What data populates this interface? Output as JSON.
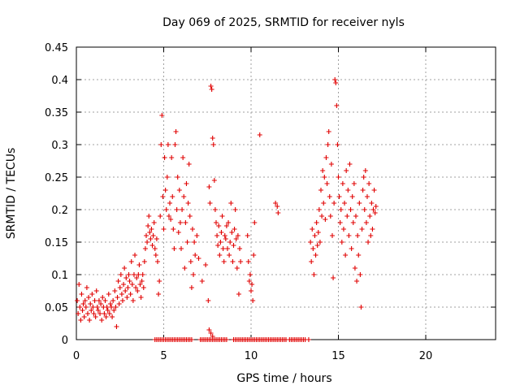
{
  "chart_data": {
    "type": "scatter",
    "title": "Day 069 of 2025, SRMTID for receiver nyls",
    "xlabel": "GPS time / hours",
    "ylabel": "SRMTID / TECUs",
    "xlim": [
      0,
      24
    ],
    "ylim": [
      0,
      0.45
    ],
    "x_ticks": [
      0,
      5,
      10,
      15,
      20
    ],
    "y_ticks": [
      0,
      0.05,
      0.1,
      0.15,
      0.2,
      0.25,
      0.3,
      0.35,
      0.4,
      0.45
    ],
    "x_tick_labels": [
      "0",
      "5",
      "10",
      "15",
      "20"
    ],
    "y_tick_labels": [
      "0",
      "0.05",
      "0.1",
      "0.15",
      "0.2",
      "0.25",
      "0.3",
      "0.35",
      "0.4",
      "0.45"
    ],
    "grid": true,
    "marker": "plus",
    "color": "#e00000",
    "series": [
      {
        "points": [
          [
            0.05,
            0.06
          ],
          [
            0.1,
            0.04
          ],
          [
            0.15,
            0.085
          ],
          [
            0.2,
            0.05
          ],
          [
            0.25,
            0.03
          ],
          [
            0.3,
            0.07
          ],
          [
            0.35,
            0.045
          ],
          [
            0.4,
            0.055
          ],
          [
            0.45,
            0.035
          ],
          [
            0.5,
            0.06
          ],
          [
            0.55,
            0.05
          ],
          [
            0.6,
            0.08
          ],
          [
            0.65,
            0.04
          ],
          [
            0.7,
            0.065
          ],
          [
            0.75,
            0.03
          ],
          [
            0.8,
            0.055
          ],
          [
            0.85,
            0.045
          ],
          [
            0.9,
            0.07
          ],
          [
            0.95,
            0.05
          ],
          [
            1.0,
            0.04
          ],
          [
            1.05,
            0.06
          ],
          [
            1.1,
            0.035
          ],
          [
            1.15,
            0.075
          ],
          [
            1.2,
            0.05
          ],
          [
            1.25,
            0.045
          ],
          [
            1.3,
            0.06
          ],
          [
            1.35,
            0.04
          ],
          [
            1.4,
            0.055
          ],
          [
            1.45,
            0.03
          ],
          [
            1.5,
            0.065
          ],
          [
            1.55,
            0.05
          ],
          [
            1.6,
            0.04
          ],
          [
            1.65,
            0.06
          ],
          [
            1.7,
            0.035
          ],
          [
            1.75,
            0.05
          ],
          [
            1.8,
            0.045
          ],
          [
            1.85,
            0.07
          ],
          [
            1.9,
            0.04
          ],
          [
            1.95,
            0.055
          ],
          [
            2.0,
            0.05
          ],
          [
            2.05,
            0.035
          ],
          [
            2.1,
            0.06
          ],
          [
            2.15,
            0.045
          ],
          [
            2.2,
            0.075
          ],
          [
            2.25,
            0.05
          ],
          [
            2.3,
            0.02
          ],
          [
            2.35,
            0.065
          ],
          [
            2.4,
            0.09
          ],
          [
            2.45,
            0.055
          ],
          [
            2.5,
            0.08
          ],
          [
            2.55,
            0.1
          ],
          [
            2.6,
            0.07
          ],
          [
            2.65,
            0.06
          ],
          [
            2.7,
            0.085
          ],
          [
            2.75,
            0.11
          ],
          [
            2.8,
            0.075
          ],
          [
            2.85,
            0.095
          ],
          [
            2.9,
            0.065
          ],
          [
            2.95,
            0.08
          ],
          [
            3.0,
            0.1
          ],
          [
            3.05,
            0.09
          ],
          [
            3.1,
            0.07
          ],
          [
            3.15,
            0.12
          ],
          [
            3.2,
            0.085
          ],
          [
            3.25,
            0.06
          ],
          [
            3.3,
            0.1
          ],
          [
            3.35,
            0.13
          ],
          [
            3.4,
            0.08
          ],
          [
            3.45,
            0.095
          ],
          [
            3.5,
            0.075
          ],
          [
            3.55,
            0.1
          ],
          [
            3.6,
            0.115
          ],
          [
            3.65,
            0.085
          ],
          [
            3.7,
            0.065
          ],
          [
            3.75,
            0.09
          ],
          [
            3.8,
            0.1
          ],
          [
            3.85,
            0.08
          ],
          [
            3.9,
            0.12
          ],
          [
            3.95,
            0.14
          ],
          [
            4.0,
            0.16
          ],
          [
            4.05,
            0.15
          ],
          [
            4.1,
            0.175
          ],
          [
            4.15,
            0.19
          ],
          [
            4.2,
            0.165
          ],
          [
            4.25,
            0.155
          ],
          [
            4.3,
            0.17
          ],
          [
            4.35,
            0.145
          ],
          [
            4.4,
            0.16
          ],
          [
            4.45,
            0.18
          ],
          [
            4.5,
            0.14
          ],
          [
            4.55,
            0.13
          ],
          [
            4.6,
            0.155
          ],
          [
            4.65,
            0.12
          ],
          [
            4.7,
            0.07
          ],
          [
            4.75,
            0.09
          ],
          [
            4.8,
            0.19
          ],
          [
            4.85,
            0.3
          ],
          [
            4.9,
            0.345
          ],
          [
            4.95,
            0.22
          ],
          [
            5.0,
            0.17
          ],
          [
            5.05,
            0.28
          ],
          [
            5.1,
            0.23
          ],
          [
            5.15,
            0.2
          ],
          [
            5.2,
            0.25
          ],
          [
            5.25,
            0.3
          ],
          [
            5.3,
            0.19
          ],
          [
            5.35,
            0.21
          ],
          [
            5.4,
            0.185
          ],
          [
            5.45,
            0.28
          ],
          [
            5.5,
            0.22
          ],
          [
            5.55,
            0.17
          ],
          [
            5.6,
            0.14
          ],
          [
            5.65,
            0.3
          ],
          [
            5.7,
            0.32
          ],
          [
            5.75,
            0.2
          ],
          [
            5.8,
            0.25
          ],
          [
            5.85,
            0.165
          ],
          [
            5.9,
            0.23
          ],
          [
            5.95,
            0.18
          ],
          [
            6.0,
            0.14
          ],
          [
            6.05,
            0.2
          ],
          [
            6.1,
            0.28
          ],
          [
            6.15,
            0.22
          ],
          [
            6.2,
            0.11
          ],
          [
            6.25,
            0.18
          ],
          [
            6.3,
            0.24
          ],
          [
            6.35,
            0.15
          ],
          [
            6.4,
            0.21
          ],
          [
            6.45,
            0.27
          ],
          [
            6.5,
            0.19
          ],
          [
            6.55,
            0.12
          ],
          [
            6.6,
            0.08
          ],
          [
            6.65,
            0.17
          ],
          [
            6.7,
            0.1
          ],
          [
            6.75,
            0.15
          ],
          [
            6.8,
            0.13
          ],
          [
            6.9,
            0.16
          ],
          [
            7.0,
            0.125
          ],
          [
            7.2,
            0.09
          ],
          [
            7.4,
            0.115
          ],
          [
            7.6,
            0.235
          ],
          [
            7.65,
            0.21
          ],
          [
            7.7,
            0.39
          ],
          [
            7.75,
            0.385
          ],
          [
            7.8,
            0.31
          ],
          [
            7.85,
            0.3
          ],
          [
            7.9,
            0.245
          ],
          [
            7.95,
            0.2
          ],
          [
            8.0,
            0.18
          ],
          [
            8.05,
            0.16
          ],
          [
            8.1,
            0.145
          ],
          [
            8.15,
            0.175
          ],
          [
            8.2,
            0.13
          ],
          [
            8.25,
            0.15
          ],
          [
            8.3,
            0.165
          ],
          [
            8.35,
            0.19
          ],
          [
            8.4,
            0.14
          ],
          [
            8.45,
            0.12
          ],
          [
            8.5,
            0.16
          ],
          [
            8.55,
            0.155
          ],
          [
            8.6,
            0.175
          ],
          [
            8.65,
            0.14
          ],
          [
            8.7,
            0.18
          ],
          [
            8.75,
            0.13
          ],
          [
            8.8,
            0.15
          ],
          [
            8.85,
            0.21
          ],
          [
            8.9,
            0.165
          ],
          [
            8.95,
            0.12
          ],
          [
            9.0,
            0.145
          ],
          [
            9.05,
            0.17
          ],
          [
            9.1,
            0.2
          ],
          [
            9.15,
            0.155
          ],
          [
            9.2,
            0.11
          ],
          [
            9.25,
            0.16
          ],
          [
            9.3,
            0.07
          ],
          [
            9.35,
            0.14
          ],
          [
            9.4,
            0.12
          ],
          [
            9.8,
            0.16
          ],
          [
            9.85,
            0.12
          ],
          [
            9.9,
            0.09
          ],
          [
            9.95,
            0.1
          ],
          [
            10.0,
            0.075
          ],
          [
            10.05,
            0.085
          ],
          [
            10.1,
            0.06
          ],
          [
            10.15,
            0.13
          ],
          [
            10.2,
            0.18
          ],
          [
            7.55,
            0.06
          ],
          [
            7.6,
            0.015
          ],
          [
            7.7,
            0.01
          ],
          [
            7.8,
            0.005
          ],
          [
            10.5,
            0.315
          ],
          [
            11.4,
            0.21
          ],
          [
            11.5,
            0.205
          ],
          [
            11.55,
            0.195
          ],
          [
            13.4,
            0.15
          ],
          [
            13.45,
            0.12
          ],
          [
            13.5,
            0.17
          ],
          [
            13.55,
            0.14
          ],
          [
            13.6,
            0.1
          ],
          [
            13.65,
            0.16
          ],
          [
            13.7,
            0.13
          ],
          [
            13.75,
            0.18
          ],
          [
            13.8,
            0.145
          ],
          [
            13.85,
            0.165
          ],
          [
            13.9,
            0.2
          ],
          [
            13.95,
            0.15
          ],
          [
            14.0,
            0.23
          ],
          [
            14.05,
            0.19
          ],
          [
            14.1,
            0.26
          ],
          [
            14.15,
            0.21
          ],
          [
            14.2,
            0.25
          ],
          [
            14.25,
            0.185
          ],
          [
            14.3,
            0.28
          ],
          [
            14.35,
            0.24
          ],
          [
            14.4,
            0.3
          ],
          [
            14.45,
            0.32
          ],
          [
            14.5,
            0.22
          ],
          [
            14.55,
            0.19
          ],
          [
            14.6,
            0.27
          ],
          [
            14.65,
            0.16
          ],
          [
            14.7,
            0.095
          ],
          [
            14.75,
            0.21
          ],
          [
            14.8,
            0.4
          ],
          [
            14.85,
            0.395
          ],
          [
            14.9,
            0.36
          ],
          [
            14.95,
            0.3
          ],
          [
            15.0,
            0.25
          ],
          [
            15.05,
            0.22
          ],
          [
            15.1,
            0.18
          ],
          [
            15.15,
            0.2
          ],
          [
            15.2,
            0.15
          ],
          [
            15.25,
            0.24
          ],
          [
            15.3,
            0.17
          ],
          [
            15.35,
            0.21
          ],
          [
            15.4,
            0.13
          ],
          [
            15.45,
            0.26
          ],
          [
            15.5,
            0.19
          ],
          [
            15.55,
            0.23
          ],
          [
            15.6,
            0.16
          ],
          [
            15.65,
            0.27
          ],
          [
            15.7,
            0.2
          ],
          [
            15.75,
            0.14
          ],
          [
            15.8,
            0.22
          ],
          [
            15.85,
            0.18
          ],
          [
            15.9,
            0.24
          ],
          [
            15.95,
            0.11
          ],
          [
            16.0,
            0.19
          ],
          [
            16.05,
            0.09
          ],
          [
            16.1,
            0.16
          ],
          [
            16.15,
            0.13
          ],
          [
            16.2,
            0.21
          ],
          [
            16.25,
            0.1
          ],
          [
            16.3,
            0.05
          ],
          [
            16.35,
            0.17
          ],
          [
            16.4,
            0.23
          ],
          [
            16.45,
            0.25
          ],
          [
            16.5,
            0.2
          ],
          [
            16.55,
            0.26
          ],
          [
            16.6,
            0.18
          ],
          [
            16.65,
            0.22
          ],
          [
            16.7,
            0.15
          ],
          [
            16.75,
            0.24
          ],
          [
            16.8,
            0.19
          ],
          [
            16.85,
            0.16
          ],
          [
            16.9,
            0.21
          ],
          [
            16.95,
            0.17
          ],
          [
            17.0,
            0.2
          ],
          [
            17.05,
            0.23
          ],
          [
            17.1,
            0.195
          ],
          [
            17.15,
            0.205
          ]
        ],
        "zero_points_x": [
          4.5,
          4.6,
          4.7,
          4.8,
          4.9,
          5.0,
          5.1,
          5.2,
          5.3,
          5.4,
          5.5,
          5.6,
          5.7,
          5.8,
          5.9,
          6.0,
          6.1,
          6.2,
          6.3,
          6.4,
          6.5,
          6.6,
          7.1,
          7.2,
          7.3,
          7.4,
          7.5,
          7.6,
          7.7,
          7.8,
          7.9,
          8.0,
          8.1,
          8.2,
          8.3,
          8.4,
          8.5,
          8.6,
          9.0,
          9.1,
          9.2,
          9.3,
          9.4,
          9.5,
          9.6,
          9.7,
          9.8,
          9.9,
          10.0,
          10.1,
          10.2,
          10.3,
          10.4,
          10.5,
          10.6,
          10.7,
          10.8,
          10.9,
          11.0,
          11.1,
          11.2,
          11.3,
          11.4,
          11.5,
          11.6,
          11.7,
          11.8,
          11.9,
          12.0,
          12.2,
          12.3,
          12.4,
          12.5,
          12.6,
          12.7,
          12.8,
          12.9,
          13.0,
          13.1,
          13.3
        ]
      }
    ]
  }
}
